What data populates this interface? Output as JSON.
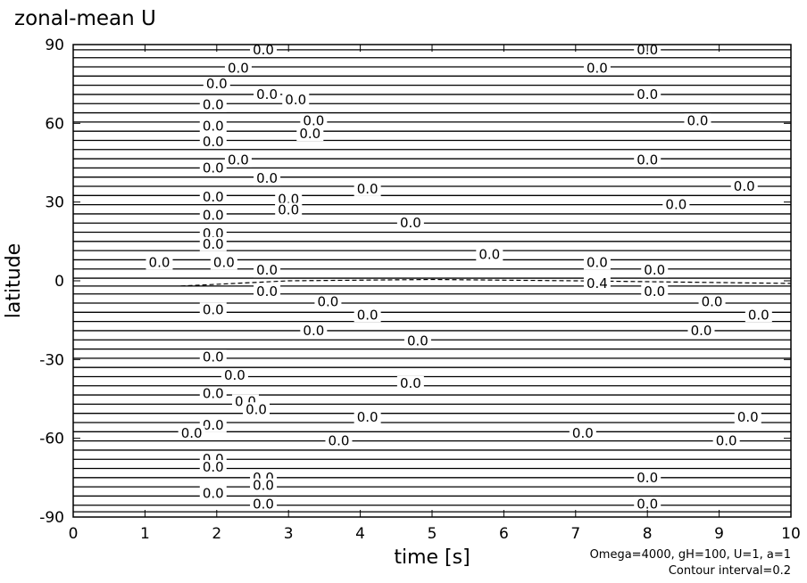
{
  "chart_data": {
    "type": "contour",
    "title": "zonal-mean U",
    "x_label": "time [s]",
    "y_label": "latitude",
    "annotations": [
      "Omega=4000, gH=100, U=1, a=1",
      "Contour interval=0.2"
    ],
    "xlim": [
      0,
      10
    ],
    "ylim": [
      -90,
      90
    ],
    "xticks": [
      0,
      1,
      2,
      3,
      4,
      5,
      6,
      7,
      8,
      9,
      10
    ],
    "yticks": [
      -90,
      -60,
      -30,
      0,
      30,
      60,
      90
    ],
    "contour_latitudes": [
      88,
      85,
      81.5,
      78,
      74.5,
      71,
      67.5,
      64,
      60.5,
      57,
      53.5,
      50,
      46.5,
      43,
      39.5,
      36,
      32.5,
      29,
      25.5,
      22,
      18.5,
      15,
      11.5,
      8,
      4.5,
      1,
      -2,
      -5,
      -8.5,
      -12,
      -15.5,
      -19,
      -22.5,
      -26,
      -29.5,
      -33,
      -36.5,
      -40,
      -43.5,
      -47,
      -50.5,
      -54,
      -57.5,
      -61,
      -64.5,
      -68,
      -71.5,
      -75,
      -78.5,
      -82,
      -85.5,
      -88
    ],
    "dashed_contour": {
      "x": [
        1.5,
        3,
        5,
        7,
        8.5,
        10
      ],
      "y": [
        -2,
        0,
        0.5,
        0,
        -0.5,
        -1
      ]
    },
    "contour_labels": [
      {
        "x": 2.65,
        "y": 88,
        "label": "0.0"
      },
      {
        "x": 2.3,
        "y": 81,
        "label": "0.0"
      },
      {
        "x": 2.0,
        "y": 75,
        "label": "0.0"
      },
      {
        "x": 2.7,
        "y": 71,
        "label": "0.0"
      },
      {
        "x": 3.1,
        "y": 69,
        "label": "0.0"
      },
      {
        "x": 1.95,
        "y": 67,
        "label": "0.0"
      },
      {
        "x": 3.35,
        "y": 61,
        "label": "0.0"
      },
      {
        "x": 1.95,
        "y": 59,
        "label": "0.0"
      },
      {
        "x": 3.3,
        "y": 56,
        "label": "0.0"
      },
      {
        "x": 1.95,
        "y": 53,
        "label": "0.0"
      },
      {
        "x": 2.3,
        "y": 46,
        "label": "0.0"
      },
      {
        "x": 1.95,
        "y": 43,
        "label": "0.0"
      },
      {
        "x": 2.7,
        "y": 39,
        "label": "0.0"
      },
      {
        "x": 4.1,
        "y": 35,
        "label": "0.0"
      },
      {
        "x": 1.95,
        "y": 32,
        "label": "0.0"
      },
      {
        "x": 3.0,
        "y": 31,
        "label": "0.0"
      },
      {
        "x": 3.0,
        "y": 27,
        "label": "0.0"
      },
      {
        "x": 1.95,
        "y": 25,
        "label": "0.0"
      },
      {
        "x": 4.7,
        "y": 22,
        "label": "0.0"
      },
      {
        "x": 1.95,
        "y": 18,
        "label": "0.0"
      },
      {
        "x": 1.95,
        "y": 14,
        "label": "0.0"
      },
      {
        "x": 5.8,
        "y": 10,
        "label": "0.0"
      },
      {
        "x": 1.2,
        "y": 7,
        "label": "0.0"
      },
      {
        "x": 2.1,
        "y": 7,
        "label": "0.0"
      },
      {
        "x": 2.7,
        "y": 4,
        "label": "0.0"
      },
      {
        "x": 7.3,
        "y": 7,
        "label": "0.0"
      },
      {
        "x": 8.1,
        "y": 4,
        "label": "0.0"
      },
      {
        "x": 7.3,
        "y": -1,
        "label": "0.4"
      },
      {
        "x": 2.7,
        "y": -4,
        "label": "0.0"
      },
      {
        "x": 8.1,
        "y": -4,
        "label": "0.0"
      },
      {
        "x": 3.55,
        "y": -8,
        "label": "0.0"
      },
      {
        "x": 8.9,
        "y": -8,
        "label": "0.0"
      },
      {
        "x": 4.1,
        "y": -13,
        "label": "0.0"
      },
      {
        "x": 9.55,
        "y": -13,
        "label": "0.0"
      },
      {
        "x": 1.95,
        "y": -11,
        "label": "0.0"
      },
      {
        "x": 3.35,
        "y": -19,
        "label": "0.0"
      },
      {
        "x": 8.75,
        "y": -19,
        "label": "0.0"
      },
      {
        "x": 4.8,
        "y": -23,
        "label": "0.0"
      },
      {
        "x": 1.95,
        "y": -29,
        "label": "0.0"
      },
      {
        "x": 2.25,
        "y": -36,
        "label": "0.0"
      },
      {
        "x": 4.7,
        "y": -39,
        "label": "0.0"
      },
      {
        "x": 1.95,
        "y": -43,
        "label": "0.0"
      },
      {
        "x": 2.4,
        "y": -46,
        "label": "0.0"
      },
      {
        "x": 2.55,
        "y": -49,
        "label": "0.0"
      },
      {
        "x": 4.1,
        "y": -52,
        "label": "0.0"
      },
      {
        "x": 9.4,
        "y": -52,
        "label": "0.0"
      },
      {
        "x": 1.95,
        "y": -55,
        "label": "0.0"
      },
      {
        "x": 1.65,
        "y": -58,
        "label": "0.0"
      },
      {
        "x": 7.1,
        "y": -58,
        "label": "0.0"
      },
      {
        "x": 3.7,
        "y": -61,
        "label": "0.0"
      },
      {
        "x": 9.1,
        "y": -61,
        "label": "0.0"
      },
      {
        "x": 1.95,
        "y": -68,
        "label": "0.0"
      },
      {
        "x": 1.95,
        "y": -71,
        "label": "0.0"
      },
      {
        "x": 2.65,
        "y": -75,
        "label": "0.0"
      },
      {
        "x": 2.65,
        "y": -78,
        "label": "0.0"
      },
      {
        "x": 1.95,
        "y": -81,
        "label": "0.0"
      },
      {
        "x": 2.65,
        "y": -85,
        "label": "0.0"
      },
      {
        "x": 8.0,
        "y": -75,
        "label": "0.0"
      },
      {
        "x": 8.0,
        "y": -85,
        "label": "0.0"
      },
      {
        "x": 8.0,
        "y": 88,
        "label": "0.0"
      },
      {
        "x": 7.3,
        "y": 81,
        "label": "0.0"
      },
      {
        "x": 8.0,
        "y": 71,
        "label": "0.0"
      },
      {
        "x": 8.7,
        "y": 61,
        "label": "0.0"
      },
      {
        "x": 8.0,
        "y": 46,
        "label": "0.0"
      },
      {
        "x": 9.35,
        "y": 36,
        "label": "0.0"
      },
      {
        "x": 8.4,
        "y": 29,
        "label": "0.0"
      }
    ]
  }
}
